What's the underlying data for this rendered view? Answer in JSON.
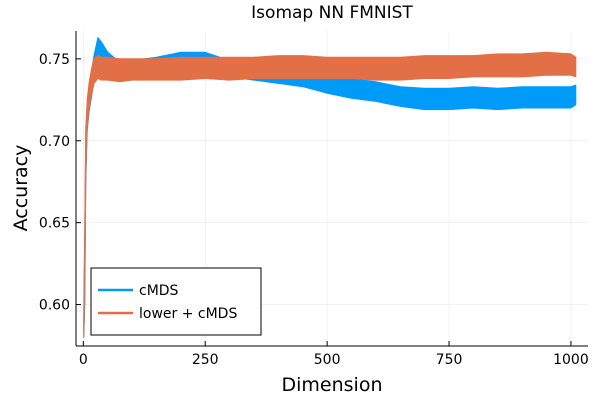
{
  "chart_data": {
    "type": "area",
    "title": "Isomap NN FMNIST",
    "xlabel": "Dimension",
    "ylabel": "Accuracy",
    "xlim": [
      -15,
      1035
    ],
    "ylim": [
      0.5747,
      0.767
    ],
    "xticks": [
      0,
      250,
      500,
      750,
      1000
    ],
    "xtick_labels": [
      "0",
      "250",
      "500",
      "750",
      "1000"
    ],
    "yticks": [
      0.6,
      0.65,
      0.7,
      0.75
    ],
    "ytick_labels": [
      "0.60",
      "0.65",
      "0.70",
      "0.75"
    ],
    "grid": true,
    "legend_position": "bottom-left",
    "series": [
      {
        "name": "cMDS",
        "color": "#009af9",
        "x": [
          1,
          3,
          5,
          8,
          12,
          17,
          22,
          30,
          38,
          50,
          75,
          100,
          150,
          200,
          250,
          300,
          350,
          400,
          450,
          500,
          550,
          600,
          650,
          700,
          750,
          800,
          850,
          900,
          950,
          1000,
          1010
        ],
        "lower": [
          0.58,
          0.6,
          0.675,
          0.706,
          0.718,
          0.727,
          0.737,
          0.748,
          0.743,
          0.744,
          0.739,
          0.738,
          0.74,
          0.741,
          0.741,
          0.739,
          0.737,
          0.735,
          0.733,
          0.729,
          0.726,
          0.724,
          0.721,
          0.719,
          0.719,
          0.72,
          0.719,
          0.72,
          0.72,
          0.72,
          0.722
        ],
        "upper": [
          0.59,
          0.645,
          0.705,
          0.722,
          0.732,
          0.743,
          0.752,
          0.763,
          0.76,
          0.754,
          0.748,
          0.749,
          0.751,
          0.754,
          0.754,
          0.749,
          0.747,
          0.746,
          0.745,
          0.742,
          0.738,
          0.736,
          0.733,
          0.732,
          0.732,
          0.733,
          0.732,
          0.733,
          0.733,
          0.733,
          0.734
        ]
      },
      {
        "name": "lower + cMDS",
        "color": "#e26f46",
        "x": [
          1,
          3,
          5,
          8,
          12,
          17,
          22,
          30,
          38,
          50,
          75,
          100,
          150,
          200,
          250,
          300,
          350,
          400,
          450,
          500,
          550,
          600,
          650,
          700,
          750,
          800,
          850,
          900,
          950,
          1000,
          1010
        ],
        "lower": [
          0.58,
          0.61,
          0.68,
          0.708,
          0.72,
          0.728,
          0.735,
          0.738,
          0.737,
          0.737,
          0.736,
          0.737,
          0.737,
          0.737,
          0.738,
          0.737,
          0.738,
          0.738,
          0.738,
          0.738,
          0.738,
          0.737,
          0.737,
          0.738,
          0.738,
          0.739,
          0.739,
          0.739,
          0.74,
          0.74,
          0.739
        ],
        "upper": [
          0.592,
          0.65,
          0.708,
          0.725,
          0.736,
          0.744,
          0.75,
          0.752,
          0.751,
          0.751,
          0.75,
          0.75,
          0.75,
          0.751,
          0.751,
          0.751,
          0.751,
          0.752,
          0.752,
          0.751,
          0.751,
          0.751,
          0.751,
          0.752,
          0.752,
          0.752,
          0.753,
          0.753,
          0.754,
          0.753,
          0.751
        ]
      }
    ]
  }
}
